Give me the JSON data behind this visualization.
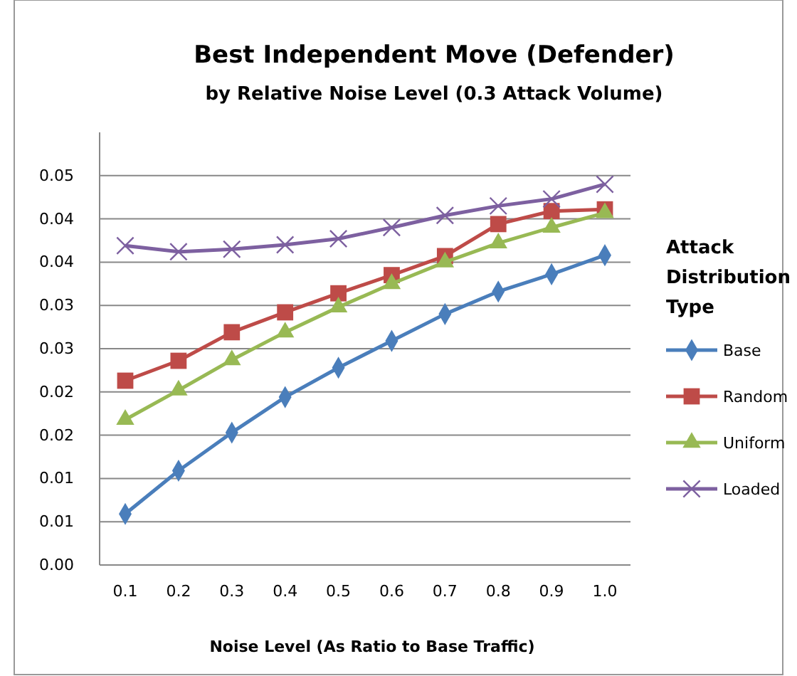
{
  "chart_data": {
    "type": "line",
    "title": "Best Independent Move (Defender)",
    "subtitle": "by Relative Noise Level (0.3 Attack Volume)",
    "xlabel": "Noise Level (As Ratio  to Base Traffic)",
    "legend_title": "Attack Distribution Type",
    "categories": [
      "0.1",
      "0.2",
      "0.3",
      "0.4",
      "0.5",
      "0.6",
      "0.7",
      "0.8",
      "0.9",
      "1.0"
    ],
    "series": [
      {
        "name": "Base",
        "color": "#4a7ebb",
        "marker": "diamond",
        "values": [
          0.0059,
          0.0109,
          0.0153,
          0.0194,
          0.0228,
          0.0259,
          0.029,
          0.0316,
          0.0336,
          0.0358
        ]
      },
      {
        "name": "Random",
        "color": "#be4b48",
        "marker": "square",
        "values": [
          0.0213,
          0.0236,
          0.0269,
          0.0292,
          0.0314,
          0.0335,
          0.0357,
          0.0394,
          0.0409,
          0.0411
        ]
      },
      {
        "name": "Uniform",
        "color": "#98b954",
        "marker": "triangle",
        "values": [
          0.0168,
          0.0202,
          0.0237,
          0.0269,
          0.0298,
          0.0325,
          0.035,
          0.0372,
          0.039,
          0.0407
        ]
      },
      {
        "name": "Loaded",
        "color": "#7d60a0",
        "marker": "cross",
        "values": [
          0.0369,
          0.0362,
          0.0365,
          0.037,
          0.0377,
          0.039,
          0.0404,
          0.0415,
          0.0423,
          0.044
        ]
      }
    ],
    "ylim": [
      0,
      0.05
    ],
    "yticks": [
      {
        "value": 0,
        "label": "0.00"
      },
      {
        "value": 0.005,
        "label": "0.01"
      },
      {
        "value": 0.01,
        "label": "0.01"
      },
      {
        "value": 0.015,
        "label": "0.02"
      },
      {
        "value": 0.02,
        "label": "0.02"
      },
      {
        "value": 0.025,
        "label": "0.03"
      },
      {
        "value": 0.03,
        "label": "0.03"
      },
      {
        "value": 0.035,
        "label": "0.04"
      },
      {
        "value": 0.04,
        "label": "0.04"
      },
      {
        "value": 0.045,
        "label": "0.05"
      }
    ],
    "grid": "y",
    "legend": "right",
    "line_style": "solid"
  }
}
